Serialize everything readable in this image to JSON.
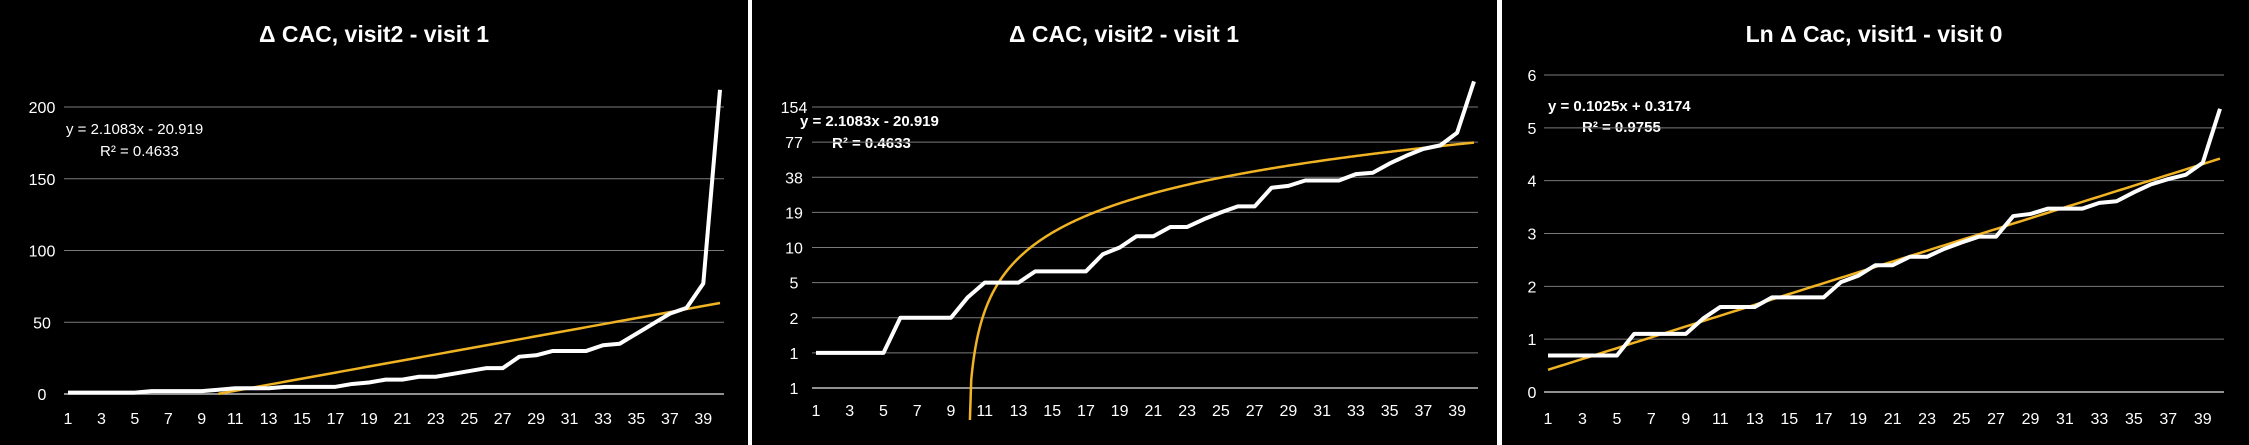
{
  "colors": {
    "background": "#000000",
    "data_line": "#ffffff",
    "trendline": "#f0b323",
    "grid": "#7a7a7a"
  },
  "chart_data": [
    {
      "type": "line",
      "title": "Δ CAC, visit2 - visit 1",
      "x": [
        1,
        2,
        3,
        4,
        5,
        6,
        7,
        8,
        9,
        10,
        11,
        12,
        13,
        14,
        15,
        16,
        17,
        18,
        19,
        20,
        21,
        22,
        23,
        24,
        25,
        26,
        27,
        28,
        29,
        30,
        31,
        32,
        33,
        34,
        35,
        36,
        37,
        38,
        39,
        40
      ],
      "x_tick_labels": [
        "1",
        "3",
        "5",
        "7",
        "9",
        "11",
        "13",
        "15",
        "17",
        "19",
        "21",
        "23",
        "25",
        "27",
        "29",
        "31",
        "33",
        "35",
        "37",
        "39"
      ],
      "series": [
        {
          "name": "Δ CAC",
          "values": [
            1,
            1,
            1,
            1,
            1,
            2,
            2,
            2,
            2,
            3,
            4,
            4,
            4,
            5,
            5,
            5,
            5,
            7,
            8,
            10,
            10,
            12,
            12,
            14,
            16,
            18,
            18,
            26,
            27,
            30,
            30,
            30,
            34,
            35,
            42,
            49,
            56,
            60,
            77,
            212
          ]
        }
      ],
      "trendline": {
        "type": "linear",
        "equation": "y = 2.1083x - 20.919",
        "r_squared": "R² = 0.4633",
        "slope": 2.1083,
        "intercept": -20.919
      },
      "y_scale": "linear",
      "y_ticks": [
        0,
        50,
        100,
        150,
        200
      ],
      "y_tick_labels": [
        "0",
        "50",
        "100",
        "150",
        "200"
      ],
      "ylim": [
        0,
        225
      ],
      "xlabel": "",
      "ylabel": ""
    },
    {
      "type": "line",
      "title": "Δ CAC, visit2 - visit 1",
      "x": [
        1,
        2,
        3,
        4,
        5,
        6,
        7,
        8,
        9,
        10,
        11,
        12,
        13,
        14,
        15,
        16,
        17,
        18,
        19,
        20,
        21,
        22,
        23,
        24,
        25,
        26,
        27,
        28,
        29,
        30,
        31,
        32,
        33,
        34,
        35,
        36,
        37,
        38,
        39,
        40
      ],
      "x_tick_labels": [
        "1",
        "3",
        "5",
        "7",
        "9",
        "11",
        "13",
        "15",
        "17",
        "19",
        "21",
        "23",
        "25",
        "27",
        "29",
        "31",
        "33",
        "35",
        "37",
        "39"
      ],
      "series": [
        {
          "name": "Δ CAC",
          "values": [
            1,
            1,
            1,
            1,
            1,
            2,
            2,
            2,
            2,
            3,
            4,
            4,
            4,
            5,
            5,
            5,
            5,
            7,
            8,
            10,
            10,
            12,
            12,
            14,
            16,
            18,
            18,
            26,
            27,
            30,
            30,
            30,
            34,
            35,
            42,
            49,
            56,
            60,
            77,
            212
          ]
        }
      ],
      "trendline": {
        "type": "linear",
        "equation": "y = 2.1083x - 20.919",
        "r_squared": "R² = 0.4633",
        "slope": 2.1083,
        "intercept": -20.919
      },
      "y_scale": "log",
      "y_tick_labels": [
        "1",
        "1",
        "2",
        "5",
        "10",
        "19",
        "38",
        "77",
        "154"
      ],
      "xlabel": "",
      "ylabel": ""
    },
    {
      "type": "line",
      "title": "Ln Δ Cac, visit1 - visit 0",
      "x": [
        1,
        2,
        3,
        4,
        5,
        6,
        7,
        8,
        9,
        10,
        11,
        12,
        13,
        14,
        15,
        16,
        17,
        18,
        19,
        20,
        21,
        22,
        23,
        24,
        25,
        26,
        27,
        28,
        29,
        30,
        31,
        32,
        33,
        34,
        35,
        36,
        37,
        38,
        39,
        40
      ],
      "x_tick_labels": [
        "1",
        "3",
        "5",
        "7",
        "9",
        "11",
        "13",
        "15",
        "17",
        "19",
        "21",
        "23",
        "25",
        "27",
        "29",
        "31",
        "33",
        "35",
        "37",
        "39"
      ],
      "series": [
        {
          "name": "Ln Δ Cac",
          "values": [
            0.69,
            0.69,
            0.69,
            0.69,
            0.69,
            1.1,
            1.1,
            1.1,
            1.1,
            1.39,
            1.61,
            1.61,
            1.61,
            1.79,
            1.79,
            1.79,
            1.79,
            2.08,
            2.2,
            2.4,
            2.4,
            2.56,
            2.56,
            2.71,
            2.83,
            2.94,
            2.94,
            3.33,
            3.37,
            3.47,
            3.47,
            3.47,
            3.58,
            3.61,
            3.78,
            3.93,
            4.03,
            4.11,
            4.34,
            5.36
          ]
        }
      ],
      "trendline": {
        "type": "linear",
        "equation": "y = 0.1025x + 0.3174",
        "r_squared": "R² = 0.9755",
        "slope": 0.1025,
        "intercept": 0.3174
      },
      "y_scale": "linear",
      "y_ticks": [
        0,
        1,
        2,
        3,
        4,
        5,
        6
      ],
      "y_tick_labels": [
        "0",
        "1",
        "2",
        "3",
        "4",
        "5",
        "6"
      ],
      "ylim": [
        0,
        6
      ],
      "xlabel": "",
      "ylabel": ""
    }
  ]
}
